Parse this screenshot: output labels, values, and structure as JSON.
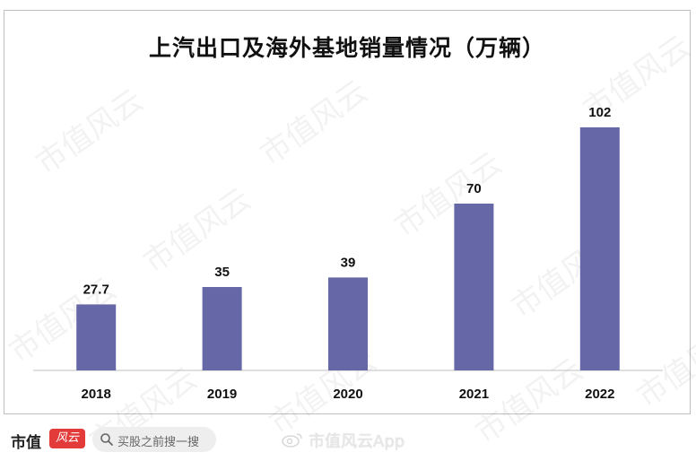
{
  "chart_data": {
    "type": "bar",
    "title": "上汽出口及海外基地销量情况（万辆）",
    "categories": [
      "2018",
      "2019",
      "2020",
      "2021",
      "2022"
    ],
    "values": [
      27.7,
      35,
      39,
      70,
      102
    ],
    "data_labels": [
      "27.7",
      "35",
      "39",
      "70",
      "102"
    ],
    "xlabel": "",
    "ylabel": "",
    "ylim": [
      0,
      102
    ],
    "grid": false,
    "bar_color": "#6567a7"
  },
  "watermark": {
    "text": "市值风云"
  },
  "footer": {
    "logo_text": "市值",
    "logo_mark": "风云",
    "search_placeholder": "买股之前搜一搜",
    "app_name": "市值风云App"
  }
}
